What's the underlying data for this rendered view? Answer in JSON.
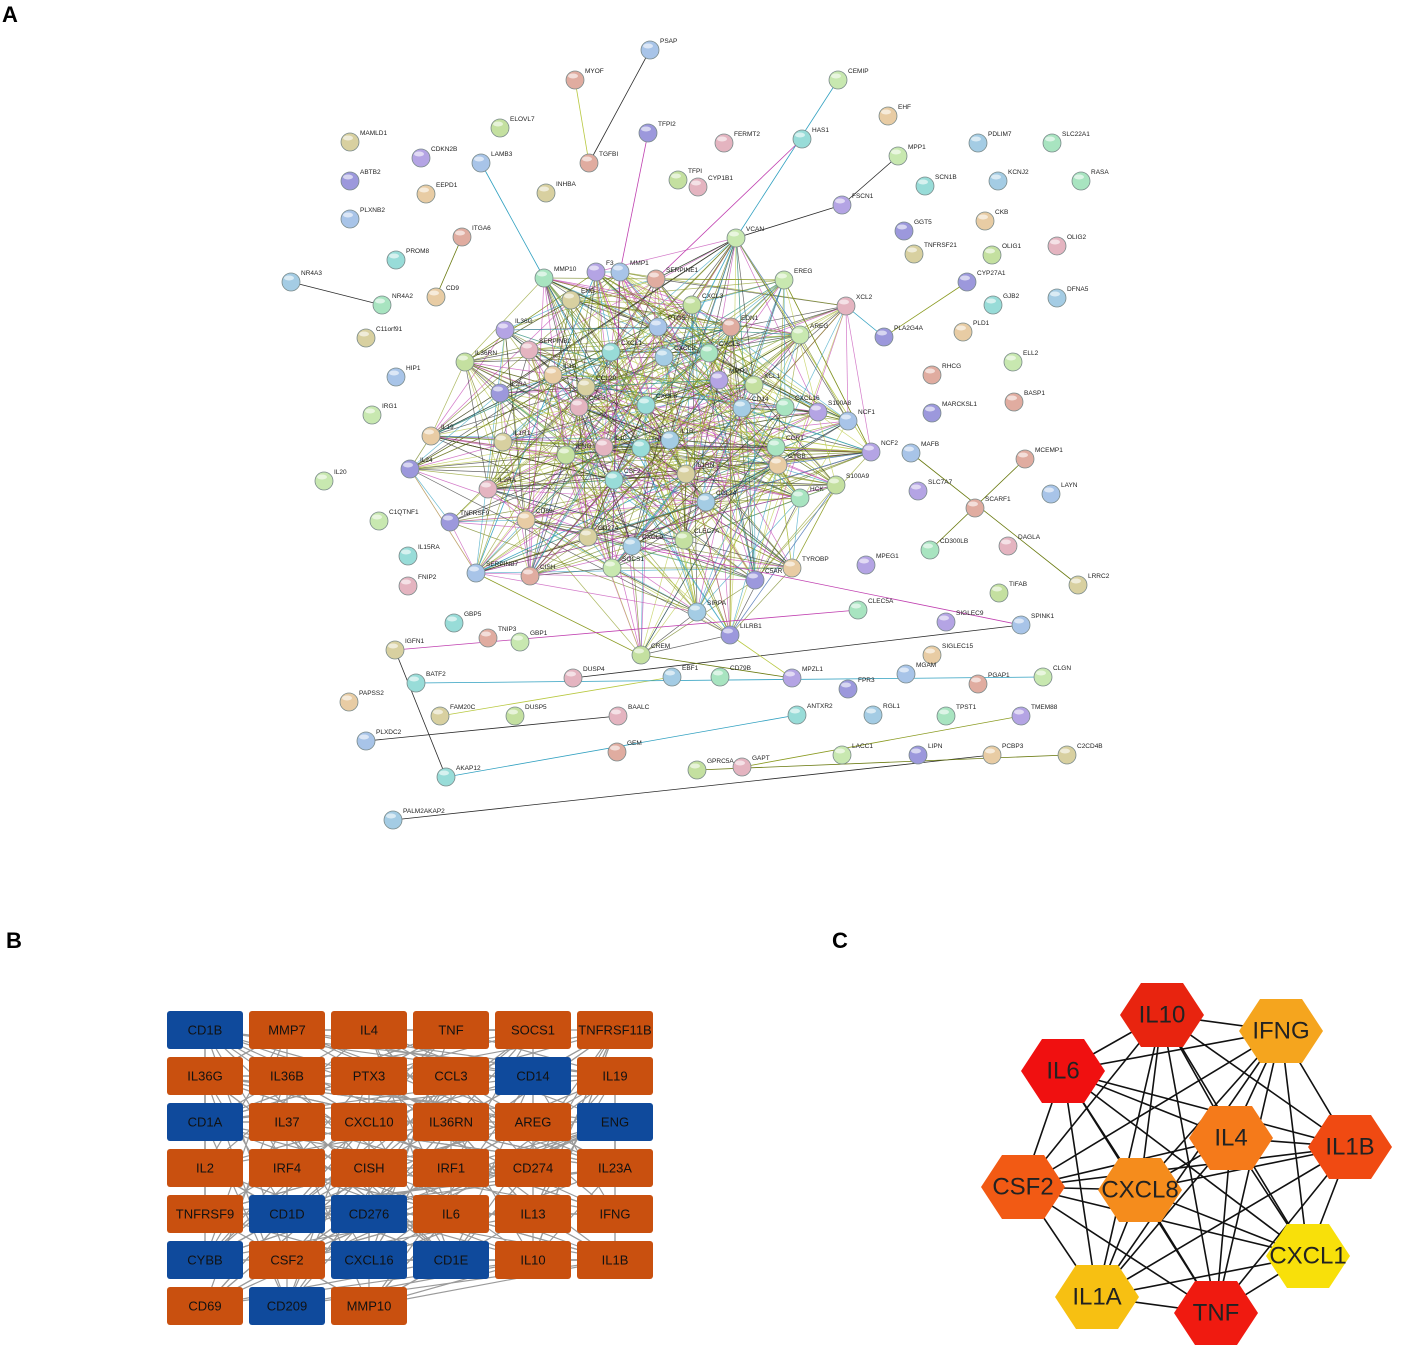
{
  "panel_a": {
    "label": "A",
    "nodes": [
      "PSAP",
      "MYOF",
      "CEMIP",
      "TFPI2",
      "EHF",
      "MAMLD1",
      "ELOVL7",
      "FERMT2",
      "HAS1",
      "PDLIM7",
      "SLC22A1",
      "CDKN2B",
      "LAMB3",
      "TGFBI",
      "MPP1",
      "ABTB2",
      "EEPD1",
      "INHBA",
      "TFPI",
      "CYP1B1",
      "SCN1B",
      "KCNJ2",
      "RASA",
      "FSCN1",
      "PLXNB2",
      "ITGA6",
      "VCAN",
      "GGT5",
      "CKB",
      "TNFRSF21",
      "OLIG1",
      "OLIG2",
      "PROM8",
      "NR4A3",
      "MMP10",
      "F3",
      "MMP1",
      "SERPINE1",
      "EREG",
      "CYP27A1",
      "CD9",
      "ENG",
      "CXCL3",
      "XCL2",
      "GJB2",
      "DFNA5",
      "NR4A2",
      "IL36G",
      "PTGS",
      "EDN1",
      "AREG",
      "PLA2G4A",
      "PLD1",
      "C11orf91",
      "IL36RN",
      "SERPINB2",
      "CXCL1",
      "CXCL2",
      "CXCL5",
      "MMP9",
      "HIP1",
      "RHCG",
      "ELL2",
      "IL23A",
      "IL1A",
      "CCL20",
      "XCL1",
      "CSF3",
      "CXCL8",
      "CD14",
      "CXCL16",
      "S100A8",
      "NCF1",
      "BASP1",
      "IRG1",
      "MARCKSL1",
      "IL19",
      "IL1R1",
      "IFNG",
      "IL10",
      "TNF",
      "IL1B",
      "CCR1",
      "NCF2",
      "MAFB",
      "MCEMP1",
      "IL20",
      "IL24",
      "CYBB",
      "IL1RN",
      "S100A9",
      "IL2RA",
      "CSF2",
      "CCL24",
      "HCK",
      "SLC7A7",
      "LAYN",
      "SCARF1",
      "C1QTNF1",
      "TNFRSF9",
      "CD69",
      "CD274",
      "CLEC7A",
      "DAGLA",
      "IL15RA",
      "CXCL9",
      "CD300LB",
      "MPEG1",
      "SERPINB7",
      "CISH",
      "SOCS1",
      "C5AR",
      "TYROBP",
      "LRRC2",
      "TIFAB",
      "FNIP2",
      "GBP5",
      "SIRPA",
      "CLEC5A",
      "SIGLEC9",
      "SPINK1",
      "TNIP3",
      "GBP1",
      "LILRB1",
      "SIGLEC15",
      "IGFN1",
      "CREM",
      "DUSP4",
      "BATF2",
      "EBF1",
      "CD79B",
      "MPZL1",
      "MGAM",
      "PGAP1",
      "CLGN",
      "FPR3",
      "PAPSS2",
      "FAM20C",
      "DUSP5",
      "BAALC",
      "ANTXR2",
      "RGL1",
      "TPST1",
      "TMEM88",
      "PLXDC2",
      "GEM",
      "LACC1",
      "LIPN",
      "PCBP3",
      "C2CD4B",
      "GPRC5A",
      "GAPT",
      "AKAP12",
      "PALM2AKAP2"
    ]
  },
  "panel_b": {
    "label": "B",
    "rows": [
      [
        "CD1B",
        "MMP7",
        "IL4",
        "TNF",
        "SOCS1",
        "TNFRSF11B"
      ],
      [
        "IL36G",
        "IL36B",
        "PTX3",
        "CCL3",
        "CD14",
        "IL19"
      ],
      [
        "CD1A",
        "IL37",
        "CXCL10",
        "IL36RN",
        "AREG",
        "ENG"
      ],
      [
        "IL2",
        "IRF4",
        "CISH",
        "IRF1",
        "CD274",
        "IL23A"
      ],
      [
        "TNFRSF9",
        "CD1D",
        "CD276",
        "IL6",
        "IL13",
        "IFNG"
      ],
      [
        "CYBB",
        "CSF2",
        "CXCL16",
        "CD1E",
        "IL10",
        "IL1B"
      ],
      [
        "CD69",
        "CD209",
        "MMP10"
      ]
    ]
  },
  "panel_c": {
    "label": "C",
    "nodes": [
      "IL10",
      "IFNG",
      "IL6",
      "IL4",
      "IL1B",
      "CSF2",
      "CXCL8",
      "CXCL1",
      "IL1A",
      "TNF"
    ]
  }
}
